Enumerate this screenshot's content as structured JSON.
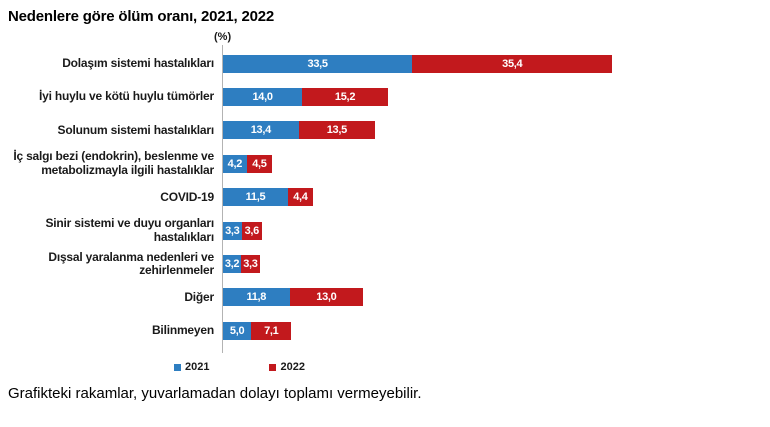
{
  "footnote": "Grafikteki rakamlar, yuvarlamadan dolayı toplamı vermeyebilir.",
  "chart_data": {
    "type": "bar",
    "orientation": "horizontal",
    "stacked": true,
    "title": "Nedenlere göre ölüm oranı, 2021, 2022",
    "unit_label": "(%)",
    "value_axis_hidden": true,
    "legend_position": "bottom",
    "categories": [
      "Dolaşım sistemi hastalıkları",
      "İyi huylu ve kötü huylu tümörler",
      "Solunum sistemi hastalıkları",
      "İç salgı bezi (endokrin), beslenme ve\nmetabolizmayla ilgili hastalıklar",
      "COVID-19",
      "Sinir sistemi ve duyu organları\nhastalıkları",
      "Dışsal yaralanma nedenleri ve\nzehirlenmeler",
      "Diğer",
      "Bilinmeyen"
    ],
    "series": [
      {
        "name": "2021",
        "color": "#2e7ec1",
        "values": [
          33.5,
          14.0,
          13.4,
          4.2,
          11.5,
          3.3,
          3.2,
          11.8,
          5.0
        ],
        "value_labels": [
          "33,5",
          "14,0",
          "13,4",
          "4,2",
          "11,5",
          "3,3",
          "3,2",
          "11,8",
          "5,0"
        ]
      },
      {
        "name": "2022",
        "color": "#c2191d",
        "values": [
          35.4,
          15.2,
          13.5,
          4.5,
          4.4,
          3.6,
          3.3,
          13.0,
          7.1
        ],
        "value_labels": [
          "35,4",
          "15,2",
          "13,5",
          "4,5",
          "4,4",
          "3,6",
          "3,3",
          "13,0",
          "7,1"
        ]
      }
    ]
  }
}
